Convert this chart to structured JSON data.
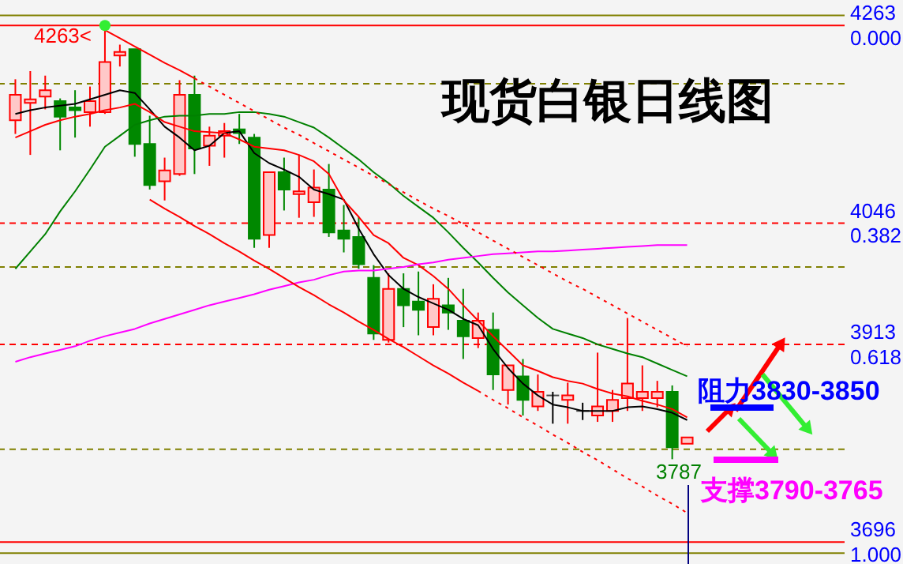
{
  "chart_data": {
    "type": "candlestick",
    "title": "现货白银日线图",
    "categories": [
      null,
      null,
      null,
      null,
      null,
      null,
      null,
      null,
      null,
      null,
      null,
      null,
      null,
      null,
      null,
      null,
      null,
      null,
      null,
      null,
      null,
      null,
      null,
      null,
      null,
      null,
      null,
      null,
      null,
      null,
      null,
      null,
      null,
      null,
      null,
      null,
      null,
      null,
      null,
      null,
      null,
      null,
      null,
      null,
      null,
      null
    ],
    "ohlc": [
      [
        4159,
        4204,
        4144,
        4187
      ],
      [
        4178,
        4213,
        4121,
        4182
      ],
      [
        4185,
        4208,
        4171,
        4192
      ],
      [
        4180,
        4183,
        4126,
        4163
      ],
      [
        4173,
        4192,
        4140,
        4170
      ],
      [
        4168,
        4196,
        4152,
        4180
      ],
      [
        4168,
        4263,
        4166,
        4223
      ],
      [
        4230,
        4242,
        4218,
        4234
      ],
      [
        4237,
        4237,
        4119,
        4133
      ],
      [
        4133,
        4164,
        4083,
        4088
      ],
      [
        4092,
        4118,
        4071,
        4104
      ],
      [
        4100,
        4203,
        4098,
        4187
      ],
      [
        4187,
        4208,
        4100,
        4128
      ],
      [
        4131,
        4152,
        4109,
        4142
      ],
      [
        4142,
        4156,
        4118,
        4147
      ],
      [
        4149,
        4166,
        4133,
        4145
      ],
      [
        4140,
        4144,
        4019,
        4029
      ],
      [
        4033,
        4102,
        4019,
        4102
      ],
      [
        4102,
        4118,
        4060,
        4083
      ],
      [
        4078,
        4121,
        4052,
        4081
      ],
      [
        4069,
        4105,
        4053,
        4085
      ],
      [
        4083,
        4111,
        4031,
        4036
      ],
      [
        4038,
        4066,
        4014,
        4029
      ],
      [
        4031,
        4053,
        3996,
        4001
      ],
      [
        3986,
        4000,
        3918,
        3925
      ],
      [
        3918,
        3991,
        3915,
        3974
      ],
      [
        3974,
        3991,
        3932,
        3956
      ],
      [
        3960,
        3993,
        3923,
        3951
      ],
      [
        3932,
        3979,
        3923,
        3963
      ],
      [
        3956,
        3986,
        3929,
        3948
      ],
      [
        3939,
        3974,
        3897,
        3922
      ],
      [
        3920,
        3948,
        3909,
        3939
      ],
      [
        3929,
        3948,
        3863,
        3880
      ],
      [
        3863,
        3890,
        3847,
        3890
      ],
      [
        3878,
        3897,
        3835,
        3852
      ],
      [
        3845,
        3880,
        3840,
        3861
      ],
      [
        3857,
        3861,
        3826,
        3857
      ],
      [
        3852,
        3871,
        3826,
        3857
      ],
      [
        3840,
        3849,
        3830,
        3840
      ],
      [
        3835,
        3904,
        3828,
        3845
      ],
      [
        3840,
        3863,
        3828,
        3852
      ],
      [
        3854,
        3942,
        3840,
        3870
      ],
      [
        3854,
        3890,
        3840,
        3861
      ],
      [
        3854,
        3873,
        3844,
        3861
      ],
      [
        3861,
        3868,
        3787,
        3800
      ],
      [
        3804,
        3811,
        3804,
        3811
      ]
    ],
    "series": [
      {
        "type": "line",
        "color": "#000000",
        "values": [
          4166,
          4170,
          4173,
          4175,
          4177,
          4182,
          4187,
          4192,
          4189,
          4171,
          4152,
          4140,
          4126,
          4131,
          4145,
          4147,
          4123,
          4112,
          4105,
          4097,
          4083,
          4078,
          4072,
          4040,
          4012,
          3989,
          3974,
          3965,
          3958,
          3951,
          3941,
          3934,
          3908,
          3887,
          3870,
          3857,
          3847,
          3844,
          3840,
          3840,
          3840,
          3844,
          3845,
          3842,
          3838,
          3830
        ]
      },
      {
        "type": "line",
        "color": "#ff0000",
        "values": [
          4140,
          4147,
          4154,
          4159,
          4163,
          4166,
          4170,
          4173,
          4177,
          4168,
          4157,
          4152,
          4147,
          4146,
          4145,
          4138,
          4130,
          4128,
          4126,
          4121,
          4114,
          4100,
          4071,
          4053,
          4033,
          4024,
          4008,
          4000,
          3988,
          3974,
          3956,
          3939,
          3922,
          3906,
          3890,
          3884,
          3877,
          3873,
          3870,
          3864,
          3859,
          3856,
          3851,
          3847,
          3842,
          3833
        ]
      },
      {
        "type": "line",
        "color": "#008000",
        "values": [
          3996,
          4015,
          4034,
          4059,
          4081,
          4105,
          4130,
          4142,
          4154,
          4159,
          4163,
          4164,
          4164,
          4166,
          4166,
          4168,
          4168,
          4166,
          4163,
          4157,
          4151,
          4140,
          4128,
          4116,
          4102,
          4090,
          4076,
          4064,
          4052,
          4036,
          4019,
          4003,
          3986,
          3970,
          3956,
          3942,
          3930,
          3925,
          3920,
          3913,
          3908,
          3903,
          3899,
          3892,
          3885,
          3878
        ]
      },
      {
        "type": "line",
        "color": "#ff00ff",
        "values": [
          3894,
          3899,
          3903,
          3907,
          3911,
          3917,
          3922,
          3926,
          3930,
          3936,
          3941,
          3946,
          3951,
          3956,
          3960,
          3964,
          3968,
          3973,
          3977,
          3981,
          3984,
          3989,
          3993,
          3994,
          3994,
          3996,
          3998,
          4001,
          4003,
          4006,
          4008,
          4010,
          4012,
          4013,
          4014,
          4015,
          4015,
          4016,
          4017,
          4018,
          4019,
          4020,
          4021,
          4022,
          4022,
          4022
        ]
      },
      {
        "type": "line",
        "color": "#ff0000",
        "line_style": "solid",
        "values": [
          null,
          null,
          null,
          null,
          null,
          null,
          4258,
          4249,
          4240,
          4231,
          4222,
          4214,
          4205,
          null,
          null,
          null,
          null,
          null,
          null,
          null,
          null,
          null,
          null,
          null,
          null,
          null,
          null,
          null,
          null,
          null,
          null,
          null,
          null,
          null,
          null,
          null,
          null,
          null,
          null,
          null,
          null,
          null,
          null,
          null,
          null,
          null
        ]
      },
      {
        "type": "line",
        "color": "#ff0000",
        "line_style": "dotted",
        "values": [
          null,
          null,
          null,
          null,
          null,
          null,
          null,
          null,
          null,
          null,
          null,
          null,
          4205,
          4196,
          4187,
          4178,
          4169,
          4160,
          4151,
          4143,
          4134,
          4125,
          4116,
          4107,
          4098,
          4089,
          4080,
          4071,
          4062,
          4054,
          4045,
          4036,
          4027,
          4018,
          4009,
          4000,
          3991,
          3982,
          3974,
          3965,
          3956,
          3947,
          3938,
          3929,
          3920,
          3911
        ]
      },
      {
        "type": "line",
        "color": "#ff0000",
        "line_style": "solid",
        "values": [
          null,
          null,
          null,
          null,
          null,
          null,
          null,
          null,
          null,
          4072,
          4062,
          4053,
          4043,
          4034,
          4024,
          4015,
          4005,
          3996,
          3986,
          3976,
          3967,
          3957,
          3948,
          3938,
          3929,
          3919,
          3910,
          3900,
          3890,
          3881,
          3871,
          3862,
          null,
          null,
          null,
          null,
          null,
          null,
          null,
          null,
          null,
          null,
          null,
          null,
          null,
          null
        ]
      },
      {
        "type": "line",
        "color": "#ff0000",
        "line_style": "dotted",
        "values": [
          null,
          null,
          null,
          null,
          null,
          null,
          null,
          null,
          null,
          null,
          null,
          null,
          null,
          null,
          null,
          null,
          null,
          null,
          null,
          null,
          null,
          null,
          null,
          null,
          null,
          null,
          null,
          null,
          null,
          null,
          null,
          3862,
          3852,
          3843,
          3833,
          3824,
          3814,
          3805,
          3795,
          3786,
          3776,
          3766,
          3757,
          3747,
          3738,
          3728
        ]
      },
      {
        "type": "scatter",
        "color": "#33ee33",
        "marker": "circle",
        "values": [
          null,
          null,
          null,
          null,
          null,
          null,
          4263,
          null,
          null,
          null,
          null,
          null,
          null,
          null,
          null,
          null,
          null,
          null,
          null,
          null,
          null,
          null,
          null,
          null,
          null,
          null,
          null,
          null,
          null,
          null,
          null,
          null,
          null,
          null,
          null,
          null,
          null,
          null,
          null,
          null,
          null,
          null,
          null,
          null,
          null,
          null
        ]
      }
    ],
    "ylim": [
      3672,
      4291
    ],
    "yticks": [
      4263,
      4046,
      3913,
      3696
    ],
    "y2lim": [
      1.0423,
      -0.0494
    ],
    "y2ticks": [
      {
        "value": 0,
        "label": "0.000"
      },
      0.382,
      0.618,
      {
        "value": 1,
        "label": "1.000"
      }
    ],
    "tick_labels": "y",
    "ref_lines": [
      {
        "axis": "y",
        "value": 4274,
        "color": "#808000",
        "line_style": "solid"
      },
      {
        "axis": "y",
        "value": 4263,
        "color": "#ff0000",
        "line_style": "solid"
      },
      {
        "axis": "y",
        "value": 4199,
        "color": "#808000",
        "line_style": "dashed"
      },
      {
        "axis": "y",
        "value": 4046,
        "color": "#ff0000",
        "line_style": "dashed"
      },
      {
        "axis": "y",
        "value": 3998,
        "color": "#808000",
        "line_style": "dashed"
      },
      {
        "axis": "y",
        "value": 3913,
        "color": "#ff0000",
        "line_style": "dashed"
      },
      {
        "axis": "y",
        "value": 3798,
        "color": "#808000",
        "line_style": "dashed"
      },
      {
        "axis": "y",
        "value": 3696,
        "color": "#ff0000",
        "line_style": "solid"
      },
      {
        "axis": "y",
        "value": 3684,
        "color": "#808000",
        "line_style": "solid"
      }
    ],
    "annotations": [
      "4263<",
      "3787",
      "阻力3830-3850",
      "支撑3790-3765"
    ],
    "grid": false,
    "marker": "none"
  }
}
